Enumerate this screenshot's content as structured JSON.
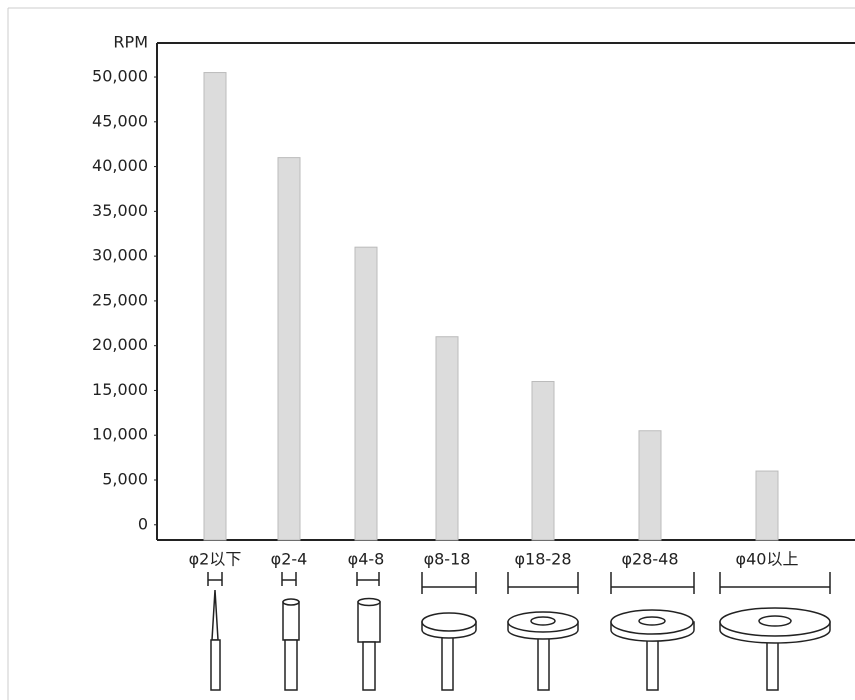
{
  "chart_data": {
    "type": "bar",
    "y_label": "RPM",
    "categories": [
      "φ2以下",
      "φ2-4",
      "φ4-8",
      "φ8-18",
      "φ18-28",
      "φ28-48",
      "φ40以上"
    ],
    "values": [
      50500,
      41000,
      31000,
      21000,
      16000,
      10500,
      6000
    ],
    "color": "#dcdcdc",
    "ylim": [
      -1700,
      53800
    ],
    "yticks": [
      {
        "value": 0,
        "label": "0"
      },
      {
        "value": 5000,
        "label": "5,000"
      },
      {
        "value": 10000,
        "label": "10,000"
      },
      {
        "value": 15000,
        "label": "15,000"
      },
      {
        "value": 20000,
        "label": "20,000"
      },
      {
        "value": 25000,
        "label": "25,000"
      },
      {
        "value": 30000,
        "label": "30,000"
      },
      {
        "value": 35000,
        "label": "35,000"
      },
      {
        "value": 40000,
        "label": "40,000"
      },
      {
        "value": 45000,
        "label": "45,000"
      },
      {
        "value": 50000,
        "label": "50,000"
      }
    ],
    "grid": false
  }
}
